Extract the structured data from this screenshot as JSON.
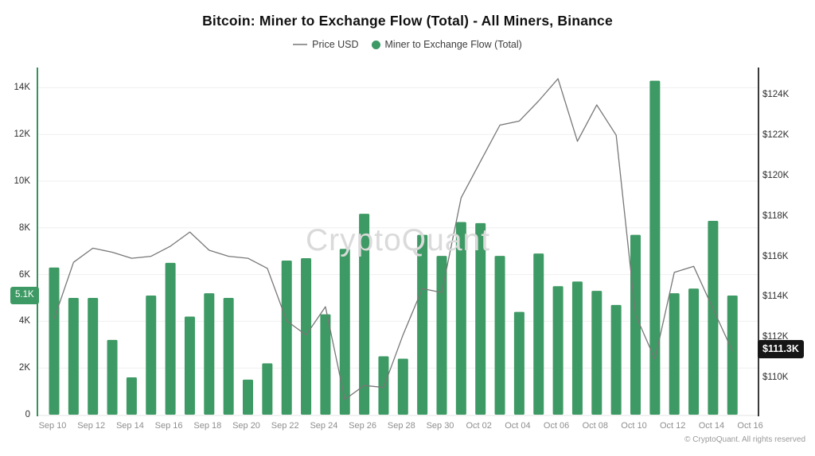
{
  "title": "Bitcoin: Miner to Exchange Flow (Total) - All Miners, Binance",
  "legend": {
    "price_label": "Price USD",
    "flow_label": "Miner to Exchange Flow (Total)"
  },
  "badges": {
    "flow_latest": "5.1K",
    "price_latest": "$111.3K"
  },
  "watermark": "CryptoQuant",
  "copyright": "© CryptoQuant. All rights reserved",
  "colors": {
    "bar": "#3e9a64",
    "bar_axis_line": "#35925d",
    "price_line": "#777777",
    "right_axis_line": "#3a3a3a",
    "gridline": "#efefef",
    "baseline": "#e3e3e3"
  },
  "chart_data": {
    "type": "combo",
    "title": "Bitcoin: Miner to Exchange Flow (Total) - All Miners, Binance",
    "x": [
      "Sep 10",
      "Sep 11",
      "Sep 12",
      "Sep 13",
      "Sep 14",
      "Sep 15",
      "Sep 16",
      "Sep 17",
      "Sep 18",
      "Sep 19",
      "Sep 20",
      "Sep 21",
      "Sep 22",
      "Sep 23",
      "Sep 24",
      "Sep 25",
      "Sep 26",
      "Sep 27",
      "Sep 28",
      "Sep 29",
      "Sep 30",
      "Oct 01",
      "Oct 02",
      "Oct 03",
      "Oct 04",
      "Oct 05",
      "Oct 06",
      "Oct 07",
      "Oct 08",
      "Oct 09",
      "Oct 10",
      "Oct 11",
      "Oct 12",
      "Oct 13",
      "Oct 14",
      "Oct 15"
    ],
    "series": [
      {
        "name": "Miner to Exchange Flow (Total)",
        "type": "bar",
        "axis": "left",
        "color": "#3e9a64",
        "values": [
          6300,
          5000,
          5000,
          3200,
          1600,
          5100,
          6500,
          4200,
          5200,
          5000,
          1500,
          2200,
          6600,
          6700,
          4300,
          7100,
          8600,
          2500,
          2400,
          7700,
          6800,
          8250,
          8200,
          6800,
          4400,
          6900,
          5500,
          5700,
          5300,
          4700,
          7700,
          14300,
          5200,
          5400,
          8300,
          5100
        ]
      },
      {
        "name": "Price USD",
        "type": "line",
        "axis": "right",
        "color": "#777777",
        "values": [
          112900,
          115700,
          116400,
          116200,
          115900,
          116000,
          116500,
          117200,
          116300,
          116000,
          115900,
          115400,
          112800,
          112100,
          113500,
          108900,
          109600,
          109500,
          112100,
          114400,
          114200,
          118900,
          120700,
          122500,
          122700,
          123700,
          124800,
          121700,
          123500,
          122000,
          113100,
          110900,
          115200,
          115500,
          113400,
          111300
        ]
      }
    ],
    "left_axis": {
      "ticks": [
        0,
        2000,
        4000,
        6000,
        8000,
        10000,
        12000,
        14000
      ],
      "tick_labels": [
        "0",
        "2K",
        "4K",
        "6K",
        "8K",
        "10K",
        "12K",
        "14K"
      ],
      "range": [
        0,
        14870
      ],
      "latest_value_badge": "5.1K"
    },
    "right_axis": {
      "ticks": [
        110000,
        112000,
        114000,
        116000,
        118000,
        120000,
        122000,
        124000
      ],
      "tick_labels": [
        "$110K",
        "$112K",
        "$114K",
        "$116K",
        "$118K",
        "$120K",
        "$122K",
        "$124K"
      ],
      "range": [
        107900,
        125400
      ],
      "latest_value_badge": "$111.3K"
    },
    "x_tick_labels": [
      "Sep 10",
      "Sep 12",
      "Sep 14",
      "Sep 16",
      "Sep 18",
      "Sep 20",
      "Sep 22",
      "Sep 24",
      "Sep 26",
      "Sep 28",
      "Sep 30",
      "Oct 02",
      "Oct 04",
      "Oct 06",
      "Oct 08",
      "Oct 10",
      "Oct 12",
      "Oct 14",
      "Oct 16"
    ],
    "grid": "horizontal",
    "legend_position": "top"
  }
}
